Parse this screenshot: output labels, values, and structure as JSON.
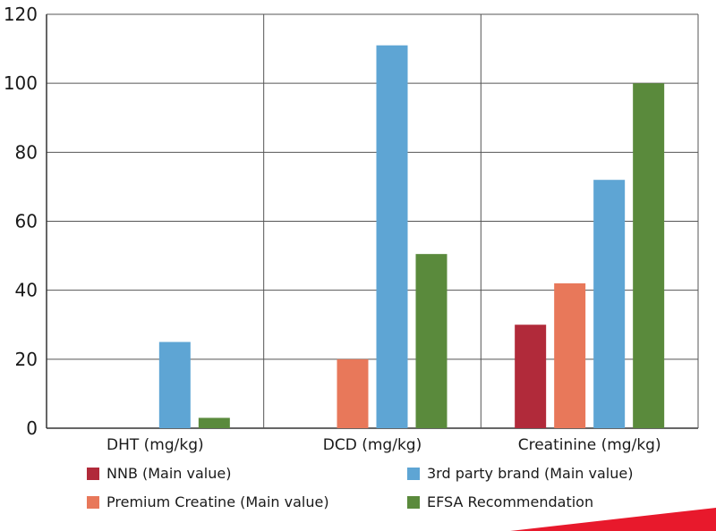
{
  "chart_data": {
    "type": "bar",
    "categories": [
      "DHT (mg/kg)",
      "DCD (mg/kg)",
      "Creatinine (mg/kg)"
    ],
    "series": [
      {
        "name": "NNB (Main value)",
        "color": "#b12a3a",
        "values": [
          null,
          null,
          30
        ]
      },
      {
        "name": "Premium Creatine (Main value)",
        "color": "#e8785a",
        "values": [
          null,
          20,
          42
        ]
      },
      {
        "name": "3rd party brand (Main value)",
        "color": "#5ea5d4",
        "values": [
          25,
          111,
          72
        ]
      },
      {
        "name": "EFSA Recommendation",
        "color": "#5a8a3c",
        "values": [
          3,
          50.5,
          100
        ]
      }
    ],
    "yticks": [
      "0",
      "20",
      "40",
      "60",
      "80",
      "100",
      "120"
    ],
    "ylim": [
      0,
      120
    ],
    "grid": true,
    "legend_position": "bottom"
  },
  "colors": {
    "axis": "#333333",
    "grid": "#555555",
    "accent_corner": "#e8192c"
  }
}
